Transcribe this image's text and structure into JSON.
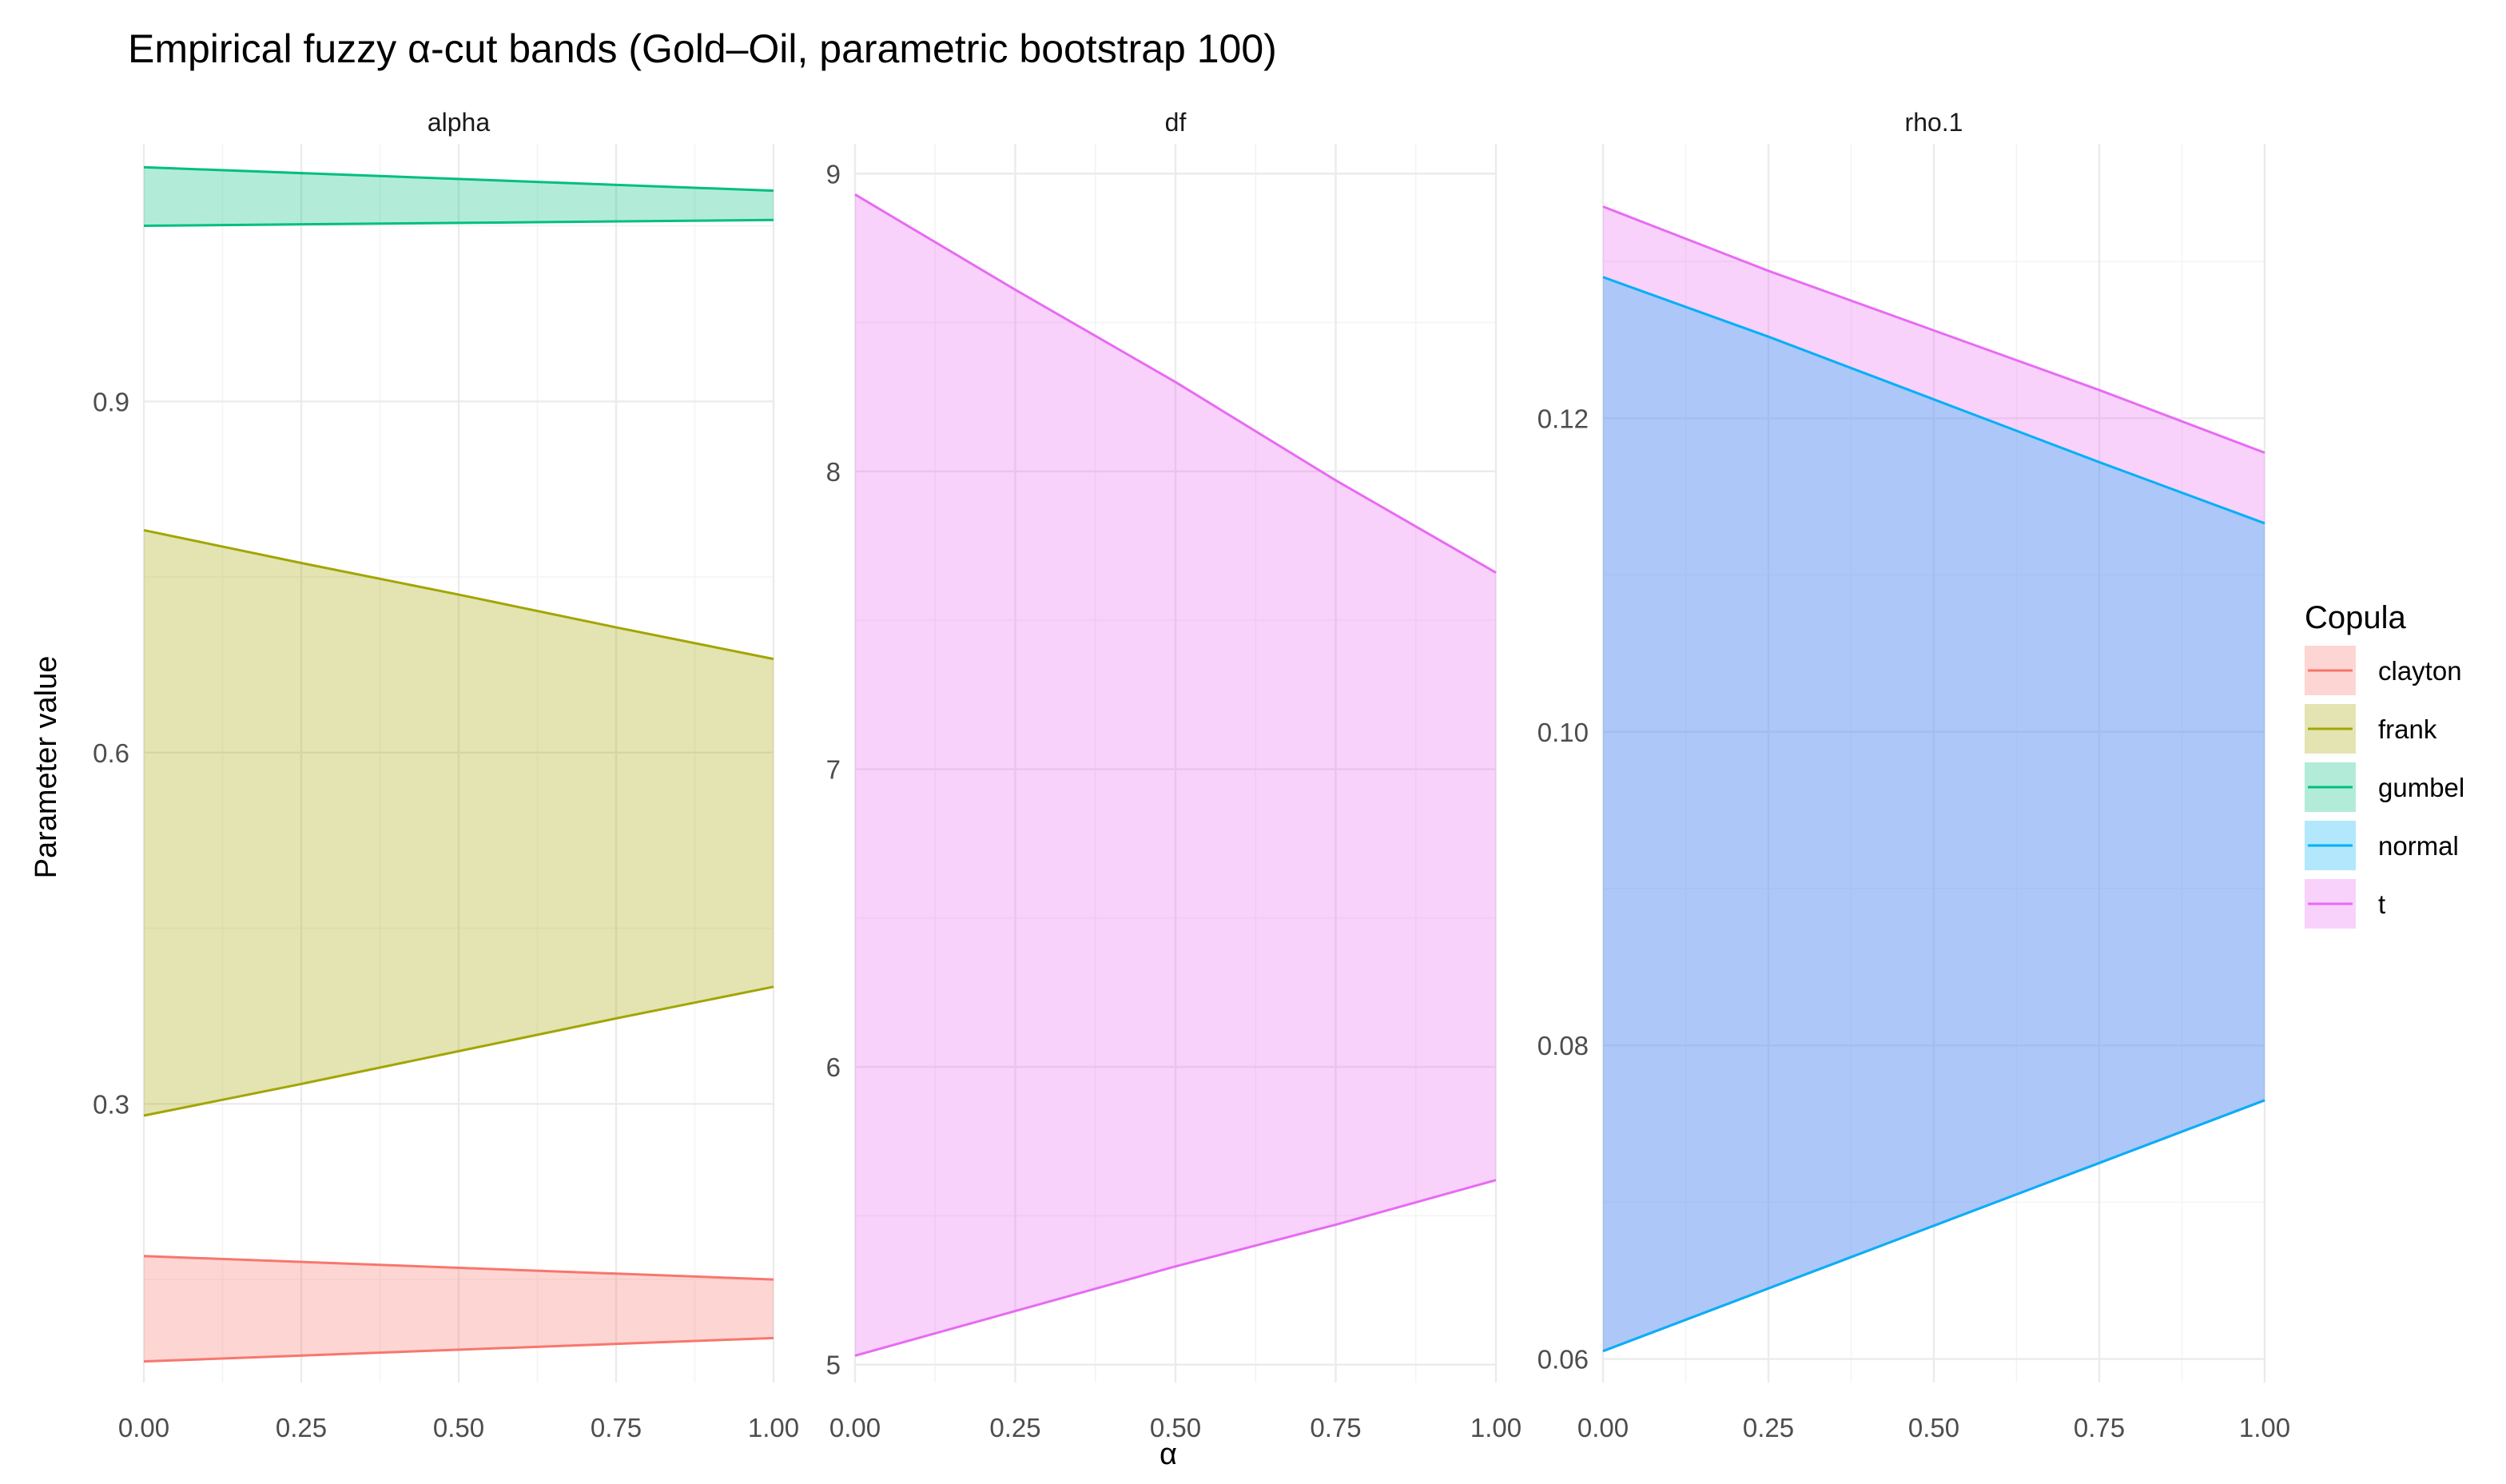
{
  "chart_data": {
    "type": "area",
    "title": "Empirical fuzzy α-cut bands (Gold–Oil, parametric bootstrap 100)",
    "xlabel": "α",
    "ylabel": "Parameter value",
    "x_ticks": [
      "0.00",
      "0.25",
      "0.50",
      "0.75",
      "1.00"
    ],
    "grid": true,
    "legend": {
      "title": "Copula",
      "placement": "right",
      "entries": [
        {
          "name": "clayton",
          "color": "#F8766D"
        },
        {
          "name": "frank",
          "color": "#A3A500"
        },
        {
          "name": "gumbel",
          "color": "#00BF7D"
        },
        {
          "name": "normal",
          "color": "#00B0F6"
        },
        {
          "name": "t",
          "color": "#E76BF3"
        }
      ]
    },
    "panels": [
      {
        "strip": "alpha",
        "xlim": [
          0,
          1
        ],
        "ylim": [
          0.062,
          1.12
        ],
        "y_ticks": [
          {
            "value": 0.3,
            "label": "0.3"
          },
          {
            "value": 0.6,
            "label": "0.6"
          },
          {
            "value": 0.9,
            "label": "0.9"
          }
        ],
        "series": [
          {
            "name": "clayton",
            "x": [
              0,
              1
            ],
            "lower": [
              0.08,
              0.1
            ],
            "upper": [
              0.17,
              0.15
            ]
          },
          {
            "name": "frank",
            "x": [
              0,
              0.25,
              0.5,
              0.75,
              1
            ],
            "lower": [
              0.29,
              0.317,
              0.345,
              0.373,
              0.4
            ],
            "upper": [
              0.79,
              0.762,
              0.735,
              0.707,
              0.68
            ]
          },
          {
            "name": "gumbel",
            "x": [
              0,
              1
            ],
            "lower": [
              1.05,
              1.055
            ],
            "upper": [
              1.1,
              1.08
            ]
          }
        ]
      },
      {
        "strip": "df",
        "xlim": [
          0,
          1
        ],
        "ylim": [
          4.94,
          9.1
        ],
        "y_ticks": [
          {
            "value": 5,
            "label": "5"
          },
          {
            "value": 6,
            "label": "6"
          },
          {
            "value": 7,
            "label": "7"
          },
          {
            "value": 8,
            "label": "8"
          },
          {
            "value": 9,
            "label": "9"
          }
        ],
        "series": [
          {
            "name": "t",
            "x": [
              0,
              0.25,
              0.5,
              0.75,
              1
            ],
            "lower": [
              5.03,
              5.18,
              5.33,
              5.47,
              5.62
            ],
            "upper": [
              8.93,
              8.61,
              8.3,
              7.97,
              7.66
            ]
          }
        ]
      },
      {
        "strip": "rho.1",
        "xlim": [
          0,
          1
        ],
        "ylim": [
          0.0585,
          0.1375
        ],
        "y_ticks": [
          {
            "value": 0.06,
            "label": "0.06"
          },
          {
            "value": 0.08,
            "label": "0.08"
          },
          {
            "value": 0.1,
            "label": "0.10"
          },
          {
            "value": 0.12,
            "label": "0.12"
          }
        ],
        "series": [
          {
            "name": "t",
            "x": [
              0,
              0.25,
              0.5,
              0.75,
              1
            ],
            "lower": [
              0.0605,
              0.0645,
              0.0685,
              0.0725,
              0.0765
            ],
            "upper": [
              0.1335,
              0.1294,
              0.1256,
              0.1218,
              0.1178
            ]
          },
          {
            "name": "normal",
            "x": [
              0,
              0.25,
              0.5,
              0.75,
              1
            ],
            "lower": [
              0.0605,
              0.0645,
              0.0685,
              0.0725,
              0.0765
            ],
            "upper": [
              0.129,
              0.1252,
              0.1212,
              0.1172,
              0.1133
            ]
          }
        ]
      }
    ]
  }
}
